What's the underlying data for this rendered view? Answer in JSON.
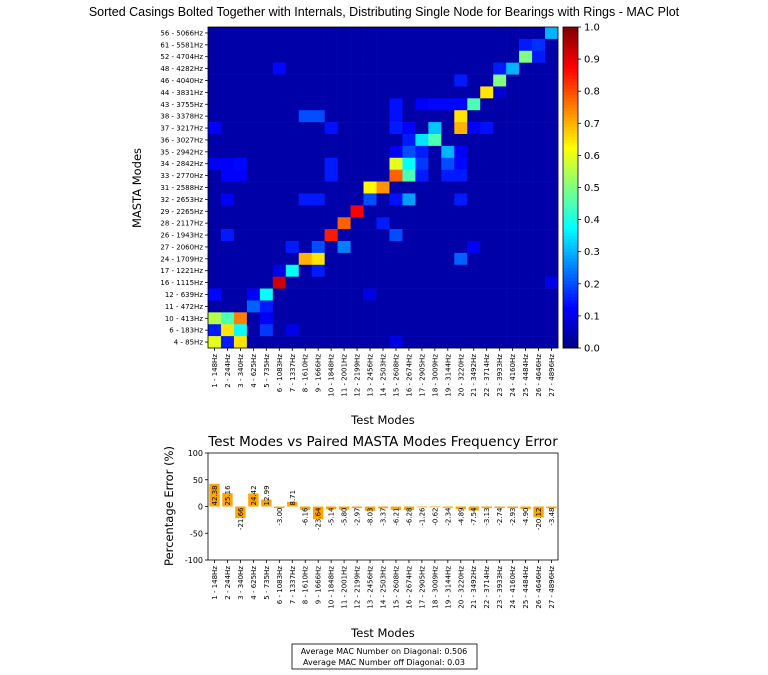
{
  "chart_data": [
    {
      "type": "heatmap",
      "title": "Sorted Casings Bolted Together with Internals, Distributing Single Node for Bearings with Rings - MAC Plot",
      "xlabel": "Test Modes",
      "ylabel": "MASTA Modes",
      "x_tick_labels": [
        "1 - 148Hz",
        "2 - 244Hz",
        "3 - 340Hz",
        "4 - 625Hz",
        "5 - 735Hz",
        "6 - 1083Hz",
        "7 - 1337Hz",
        "8 - 1610Hz",
        "9 - 1666Hz",
        "10 - 1848Hz",
        "11 - 2001Hz",
        "12 - 2199Hz",
        "13 - 2456Hz",
        "14 - 2503Hz",
        "15 - 2608Hz",
        "16 - 2674Hz",
        "17 - 2905Hz",
        "18 - 3009Hz",
        "19 - 3144Hz",
        "20 - 3220Hz",
        "21 - 3492Hz",
        "22 - 3714Hz",
        "23 - 3933Hz",
        "24 - 4160Hz",
        "25 - 4484Hz",
        "26 - 4646Hz",
        "27 - 4896Hz"
      ],
      "y_tick_labels": [
        "56 - 5066Hz",
        "61 - 5581Hz",
        "52 - 4704Hz",
        "48 - 4282Hz",
        "46 - 4040Hz",
        "44 - 3831Hz",
        "43 - 3755Hz",
        "38 - 3378Hz",
        "37 - 3217Hz",
        "36 - 3027Hz",
        "35 - 2942Hz",
        "34 - 2842Hz",
        "33 - 2770Hz",
        "31 - 2588Hz",
        "32 - 2653Hz",
        "29 - 2265Hz",
        "28 - 2117Hz",
        "26 - 1943Hz",
        "27 - 2060Hz",
        "24 - 1709Hz",
        "17 - 1221Hz",
        "16 - 1115Hz",
        "12 - 639Hz",
        "11 - 472Hz",
        "10 - 413Hz",
        "6 - 183Hz",
        "4 - 85Hz"
      ],
      "colormap": "jet",
      "vmin": 0.0,
      "vmax": 1.0,
      "colorbar_ticks": [
        "0.0",
        "0.1",
        "0.2",
        "0.3",
        "0.4",
        "0.5",
        "0.6",
        "0.7",
        "0.8",
        "0.9",
        "1.0"
      ],
      "default_value": 0.04,
      "cells_row_col_value": [
        [
          0,
          26,
          0.3
        ],
        [
          1,
          24,
          0.15
        ],
        [
          1,
          25,
          0.17
        ],
        [
          2,
          24,
          0.5
        ],
        [
          2,
          25,
          0.15
        ],
        [
          3,
          5,
          0.13
        ],
        [
          3,
          22,
          0.15
        ],
        [
          3,
          23,
          0.3
        ],
        [
          4,
          19,
          0.15
        ],
        [
          4,
          22,
          0.5
        ],
        [
          5,
          21,
          0.65
        ],
        [
          5,
          22,
          0.08
        ],
        [
          6,
          14,
          0.14
        ],
        [
          6,
          16,
          0.12
        ],
        [
          6,
          17,
          0.13
        ],
        [
          6,
          18,
          0.13
        ],
        [
          6,
          19,
          0.13
        ],
        [
          6,
          20,
          0.45
        ],
        [
          7,
          7,
          0.2
        ],
        [
          7,
          8,
          0.2
        ],
        [
          7,
          14,
          0.14
        ],
        [
          7,
          19,
          0.65
        ],
        [
          8,
          0,
          0.12
        ],
        [
          8,
          9,
          0.14
        ],
        [
          8,
          14,
          0.15
        ],
        [
          8,
          15,
          0.12
        ],
        [
          8,
          17,
          0.32
        ],
        [
          8,
          19,
          0.7
        ],
        [
          8,
          20,
          0.12
        ],
        [
          8,
          21,
          0.14
        ],
        [
          9,
          15,
          0.15
        ],
        [
          9,
          16,
          0.35
        ],
        [
          9,
          17,
          0.45
        ],
        [
          10,
          14,
          0.12
        ],
        [
          10,
          15,
          0.2
        ],
        [
          10,
          16,
          0.15
        ],
        [
          10,
          18,
          0.3
        ],
        [
          10,
          19,
          0.12
        ],
        [
          11,
          0,
          0.12
        ],
        [
          11,
          1,
          0.12
        ],
        [
          11,
          2,
          0.13
        ],
        [
          11,
          9,
          0.15
        ],
        [
          11,
          14,
          0.6
        ],
        [
          11,
          15,
          0.38
        ],
        [
          11,
          16,
          0.18
        ],
        [
          11,
          18,
          0.2
        ],
        [
          11,
          19,
          0.13
        ],
        [
          12,
          1,
          0.12
        ],
        [
          12,
          2,
          0.12
        ],
        [
          12,
          9,
          0.15
        ],
        [
          12,
          14,
          0.78
        ],
        [
          12,
          15,
          0.45
        ],
        [
          12,
          16,
          0.15
        ],
        [
          12,
          18,
          0.15
        ],
        [
          12,
          19,
          0.15
        ],
        [
          13,
          12,
          0.63
        ],
        [
          13,
          13,
          0.73
        ],
        [
          14,
          1,
          0.12
        ],
        [
          14,
          7,
          0.15
        ],
        [
          14,
          8,
          0.15
        ],
        [
          14,
          12,
          0.2
        ],
        [
          14,
          14,
          0.14
        ],
        [
          14,
          15,
          0.28
        ],
        [
          14,
          19,
          0.15
        ],
        [
          15,
          11,
          0.88
        ],
        [
          16,
          10,
          0.78
        ],
        [
          16,
          13,
          0.15
        ],
        [
          17,
          1,
          0.15
        ],
        [
          17,
          9,
          0.85
        ],
        [
          17,
          14,
          0.2
        ],
        [
          18,
          6,
          0.15
        ],
        [
          18,
          8,
          0.2
        ],
        [
          18,
          10,
          0.25
        ],
        [
          18,
          20,
          0.12
        ],
        [
          19,
          7,
          0.7
        ],
        [
          19,
          8,
          0.65
        ],
        [
          19,
          19,
          0.22
        ],
        [
          20,
          5,
          0.1
        ],
        [
          20,
          6,
          0.38
        ],
        [
          20,
          8,
          0.15
        ],
        [
          21,
          5,
          0.92
        ],
        [
          21,
          26,
          0.1
        ],
        [
          22,
          0,
          0.13
        ],
        [
          22,
          3,
          0.12
        ],
        [
          22,
          4,
          0.38
        ],
        [
          22,
          12,
          0.1
        ],
        [
          23,
          3,
          0.22
        ],
        [
          23,
          4,
          0.15
        ],
        [
          24,
          0,
          0.55
        ],
        [
          24,
          1,
          0.45
        ],
        [
          24,
          2,
          0.75
        ],
        [
          24,
          4,
          0.12
        ],
        [
          25,
          0,
          0.15
        ],
        [
          25,
          1,
          0.65
        ],
        [
          25,
          2,
          0.38
        ],
        [
          25,
          4,
          0.18
        ],
        [
          25,
          6,
          0.1
        ],
        [
          26,
          0,
          0.6
        ],
        [
          26,
          1,
          0.15
        ],
        [
          26,
          2,
          0.65
        ],
        [
          26,
          14,
          0.1
        ]
      ]
    },
    {
      "type": "bar",
      "title": "Test Modes vs Paired MASTA Modes Frequency Error",
      "xlabel": "Test Modes",
      "ylabel": "Percentage Error (%)",
      "ylim": [
        -100,
        100
      ],
      "y_ticks": [
        100,
        50,
        0,
        -50,
        -100
      ],
      "categories": [
        "1 - 148Hz",
        "2 - 244Hz",
        "3 - 340Hz",
        "4 - 625Hz",
        "5 - 735Hz",
        "6 - 1083Hz",
        "7 - 1337Hz",
        "8 - 1610Hz",
        "9 - 1666Hz",
        "10 - 1848Hz",
        "11 - 2001Hz",
        "12 - 2199Hz",
        "13 - 2456Hz",
        "14 - 2503Hz",
        "15 - 2608Hz",
        "16 - 2674Hz",
        "17 - 2905Hz",
        "18 - 3009Hz",
        "19 - 3144Hz",
        "20 - 3220Hz",
        "21 - 3492Hz",
        "22 - 3714Hz",
        "23 - 3933Hz",
        "24 - 4160Hz",
        "25 - 4484Hz",
        "26 - 4646Hz",
        "27 - 4896Hz"
      ],
      "values": [
        42.38,
        25.16,
        -21.66,
        24.42,
        12.99,
        -3.0,
        8.71,
        -6.16,
        -23.64,
        -5.14,
        -5.8,
        -2.97,
        -8.03,
        -3.37,
        -6.21,
        -6.28,
        -1.26,
        -0.62,
        -2.34,
        -4.89,
        -7.54,
        -3.13,
        -2.74,
        -2.93,
        -4.9,
        -20.12,
        -3.48
      ],
      "data_labels": [
        "42.38",
        "25.16",
        "-21.66",
        "24.42",
        "12.99",
        "-3.00",
        "8.71",
        "-6.16",
        "-23.64",
        "-5.14",
        "-5.80",
        "-2.97",
        "-8.03",
        "-3.37",
        "-6.21",
        "-6.28",
        "-1.26",
        "-0.62",
        "-2.34",
        "-4.89",
        "-7.54",
        "-3.13",
        "-2.74",
        "-2.93",
        "-4.90",
        "-20.12",
        "-3.48"
      ],
      "bar_color": "#ffa500",
      "annotation": [
        "Average MAC Number on Diagonal: 0.506",
        "Average MAC Number off Diagonal: 0.03"
      ]
    }
  ]
}
